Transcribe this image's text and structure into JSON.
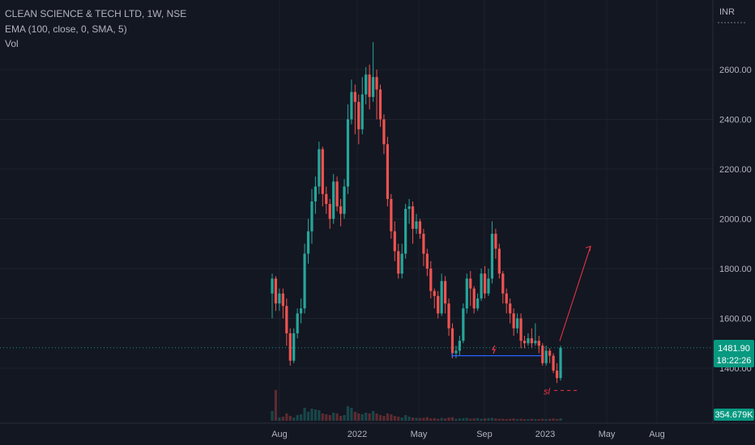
{
  "header": {
    "symbol": "CLEAN SCIENCE & TECH LTD, 1W, NSE",
    "indicator": "EMA (100, close, 0, SMA, 5)",
    "volume_label": "Vol",
    "currency": "INR"
  },
  "price_tag": {
    "price": "1481.90",
    "countdown": "18:22:26",
    "color": "#089981"
  },
  "volume_tag": {
    "value": "354.679K",
    "color": "#089981"
  },
  "colors": {
    "up": "#26a69a",
    "down": "#ef5350",
    "background": "#131722",
    "grid": "#1e222d",
    "text": "#b2b5be",
    "annotation": "#f23645",
    "level": "#2962ff"
  },
  "annotations": {
    "sl_text": "sl"
  },
  "chart_data": {
    "type": "candlestick",
    "title": "CLEAN SCIENCE & TECH LTD, 1W, NSE",
    "y_axis": {
      "position": "right",
      "range": [
        1300,
        2720
      ],
      "ticks": [
        "1400.00",
        "1600.00",
        "1800.00",
        "2000.00",
        "2200.00",
        "2400.00",
        "2600.00"
      ]
    },
    "x_axis": {
      "ticks": [
        "Aug",
        "2022",
        "May",
        "Sep",
        "2023",
        "May",
        "Aug"
      ]
    },
    "grid": true,
    "candles": [
      [
        1700,
        1760,
        1780,
        1600
      ],
      [
        1760,
        1660,
        1770,
        1630
      ],
      [
        1660,
        1700,
        1720,
        1630
      ],
      [
        1700,
        1650,
        1720,
        1600
      ],
      [
        1650,
        1540,
        1680,
        1490
      ],
      [
        1540,
        1430,
        1560,
        1410
      ],
      [
        1430,
        1540,
        1560,
        1420
      ],
      [
        1540,
        1620,
        1640,
        1520
      ],
      [
        1620,
        1640,
        1680,
        1580
      ],
      [
        1640,
        1860,
        1900,
        1620
      ],
      [
        1860,
        1950,
        2000,
        1820
      ],
      [
        1950,
        2070,
        2120,
        1900
      ],
      [
        2070,
        2130,
        2170,
        2020
      ],
      [
        2130,
        2280,
        2310,
        2100
      ],
      [
        2280,
        2100,
        2290,
        2050
      ],
      [
        2100,
        2060,
        2130,
        2020
      ],
      [
        2060,
        2000,
        2080,
        1960
      ],
      [
        2000,
        2150,
        2180,
        1980
      ],
      [
        2150,
        2050,
        2170,
        2030
      ],
      [
        2050,
        2020,
        2080,
        1970
      ],
      [
        2020,
        2130,
        2160,
        2000
      ],
      [
        2130,
        2400,
        2460,
        2100
      ],
      [
        2400,
        2510,
        2560,
        2380
      ],
      [
        2510,
        2470,
        2540,
        2340
      ],
      [
        2470,
        2360,
        2500,
        2300
      ],
      [
        2360,
        2500,
        2570,
        2340
      ],
      [
        2500,
        2580,
        2610,
        2460
      ],
      [
        2580,
        2490,
        2620,
        2440
      ],
      [
        2490,
        2570,
        2710,
        2470
      ],
      [
        2570,
        2520,
        2600,
        2400
      ],
      [
        2520,
        2400,
        2540,
        2370
      ],
      [
        2400,
        2300,
        2420,
        2260
      ],
      [
        2300,
        2080,
        2330,
        2050
      ],
      [
        2080,
        1950,
        2100,
        1920
      ],
      [
        1950,
        1870,
        1990,
        1830
      ],
      [
        1870,
        1780,
        1900,
        1760
      ],
      [
        1780,
        1860,
        1900,
        1760
      ],
      [
        1860,
        2040,
        2060,
        1840
      ],
      [
        2040,
        2050,
        2080,
        1980
      ],
      [
        2050,
        1960,
        2070,
        1900
      ],
      [
        1960,
        1990,
        2020,
        1940
      ],
      [
        1990,
        1940,
        2000,
        1920
      ],
      [
        1940,
        1860,
        1960,
        1810
      ],
      [
        1860,
        1800,
        1880,
        1770
      ],
      [
        1800,
        1710,
        1830,
        1680
      ],
      [
        1710,
        1690,
        1720,
        1640
      ],
      [
        1690,
        1620,
        1710,
        1600
      ],
      [
        1620,
        1750,
        1780,
        1610
      ],
      [
        1750,
        1660,
        1770,
        1620
      ],
      [
        1660,
        1560,
        1680,
        1530
      ],
      [
        1560,
        1460,
        1580,
        1440
      ],
      [
        1460,
        1470,
        1490,
        1440
      ],
      [
        1470,
        1510,
        1530,
        1450
      ],
      [
        1510,
        1640,
        1660,
        1500
      ],
      [
        1640,
        1760,
        1780,
        1620
      ],
      [
        1760,
        1720,
        1790,
        1650
      ],
      [
        1720,
        1640,
        1730,
        1620
      ],
      [
        1640,
        1680,
        1700,
        1630
      ],
      [
        1680,
        1780,
        1800,
        1670
      ],
      [
        1780,
        1700,
        1810,
        1680
      ],
      [
        1700,
        1760,
        1800,
        1690
      ],
      [
        1760,
        1940,
        1990,
        1740
      ],
      [
        1940,
        1880,
        1960,
        1840
      ],
      [
        1880,
        1780,
        1900,
        1760
      ],
      [
        1780,
        1700,
        1790,
        1660
      ],
      [
        1700,
        1660,
        1720,
        1620
      ],
      [
        1660,
        1620,
        1680,
        1580
      ],
      [
        1620,
        1560,
        1640,
        1530
      ],
      [
        1560,
        1600,
        1620,
        1540
      ],
      [
        1600,
        1510,
        1620,
        1480
      ],
      [
        1510,
        1500,
        1530,
        1480
      ],
      [
        1500,
        1520,
        1540,
        1490
      ],
      [
        1520,
        1500,
        1560,
        1480
      ],
      [
        1500,
        1510,
        1580,
        1490
      ],
      [
        1510,
        1490,
        1530,
        1460
      ],
      [
        1490,
        1420,
        1500,
        1410
      ],
      [
        1420,
        1470,
        1490,
        1410
      ],
      [
        1470,
        1450,
        1480,
        1420
      ],
      [
        1450,
        1390,
        1460,
        1380
      ],
      [
        1390,
        1360,
        1420,
        1340
      ],
      [
        1360,
        1482,
        1490,
        1350
      ]
    ],
    "volumes": [
      60,
      190,
      20,
      25,
      45,
      30,
      20,
      35,
      40,
      80,
      55,
      75,
      70,
      65,
      45,
      40,
      35,
      50,
      45,
      30,
      35,
      90,
      80,
      55,
      45,
      40,
      50,
      45,
      60,
      45,
      35,
      30,
      45,
      40,
      30,
      25,
      20,
      35,
      25,
      20,
      18,
      16,
      18,
      22,
      14,
      16,
      12,
      18,
      14,
      20,
      22,
      12,
      14,
      16,
      18,
      12,
      14,
      16,
      12,
      14,
      16,
      18,
      14,
      12,
      12,
      10,
      12,
      14,
      10,
      12,
      10,
      10,
      12,
      10,
      10,
      12,
      10,
      12,
      14,
      10,
      15
    ],
    "support_level": 1450,
    "projection_target": 1890,
    "stop_loss_level": 1310
  }
}
